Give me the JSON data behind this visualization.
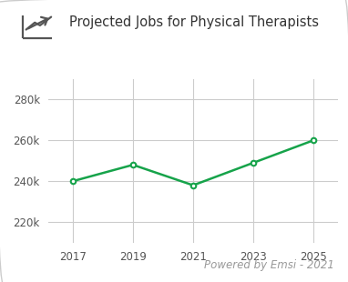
{
  "years": [
    2017,
    2019,
    2021,
    2023,
    2025
  ],
  "values": [
    240000,
    248000,
    238000,
    249000,
    260000
  ],
  "line_color": "#16a34a",
  "marker": "o",
  "marker_facecolor": "white",
  "marker_edgecolor": "#16a34a",
  "marker_size": 4,
  "line_width": 1.8,
  "title": "Projected Jobs for Physical Therapists",
  "title_fontsize": 10.5,
  "title_color": "#333333",
  "ylim": [
    210000,
    290000
  ],
  "yticks": [
    220000,
    240000,
    260000,
    280000
  ],
  "ytick_labels": [
    "220k",
    "240k",
    "260k",
    "280k"
  ],
  "xticks": [
    2017,
    2019,
    2021,
    2023,
    2025
  ],
  "grid_color": "#cccccc",
  "background_color": "#ffffff",
  "border_color": "#cccccc",
  "watermark": "Powered by Emsi - 2021",
  "watermark_fontsize": 8.5,
  "watermark_color": "#999999",
  "tick_fontsize": 8.5,
  "tick_color": "#555555",
  "icon_color": "#555555"
}
